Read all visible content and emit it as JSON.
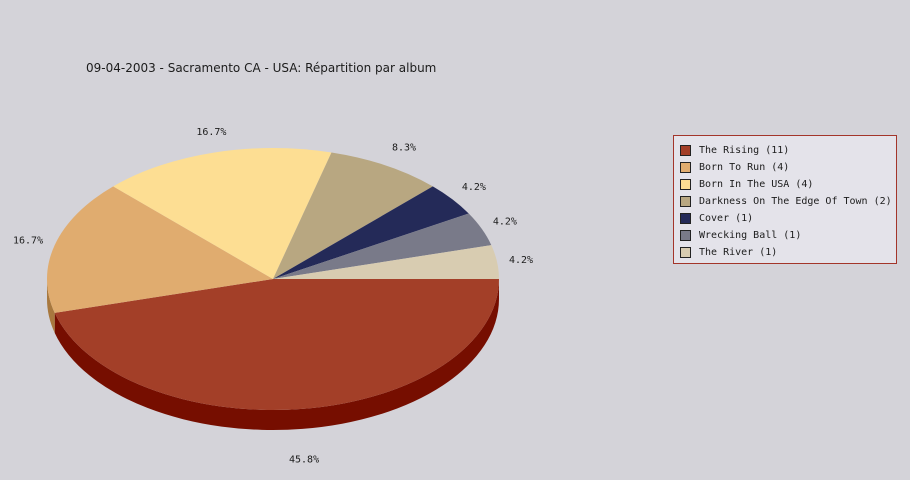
{
  "chart_data": {
    "type": "pie",
    "title": "09-04-2003 - Sacramento CA - USA:  Répartition par album",
    "slices": [
      {
        "name": "The Rising",
        "label": "The Rising (11)",
        "value": 11,
        "percent_label": "45.8%",
        "color": "#a33f28",
        "side_color": "#760e00"
      },
      {
        "name": "Born To Run",
        "label": "Born To Run (4)",
        "value": 4,
        "percent_label": "16.7%",
        "color": "#e0ac6f",
        "side_color": "#a8783e"
      },
      {
        "name": "Born In The USA",
        "label": "Born In The USA (4)",
        "value": 4,
        "percent_label": "16.7%",
        "color": "#fdde93",
        "side_color": "#c7a85e"
      },
      {
        "name": "Darkness On The Edge Of Town",
        "label": "Darkness On The Edge Of Town (2)",
        "value": 2,
        "percent_label": "8.3%",
        "color": "#b8a781",
        "side_color": "#857650"
      },
      {
        "name": "Cover",
        "label": "Cover (1)",
        "value": 1,
        "percent_label": "4.2%",
        "color": "#242a58",
        "side_color": "#121636"
      },
      {
        "name": "Wrecking Ball",
        "label": "Wrecking Ball (1)",
        "value": 1,
        "percent_label": "4.2%",
        "color": "#797a89",
        "side_color": "#4f505e"
      },
      {
        "name": "The River",
        "label": "The River (1)",
        "value": 1,
        "percent_label": "4.2%",
        "color": "#d8ccb1",
        "side_color": "#a89d84"
      }
    ],
    "legend_position": "right",
    "legend_border_color": "#a3352a",
    "background_color": "#d4d3d9"
  }
}
